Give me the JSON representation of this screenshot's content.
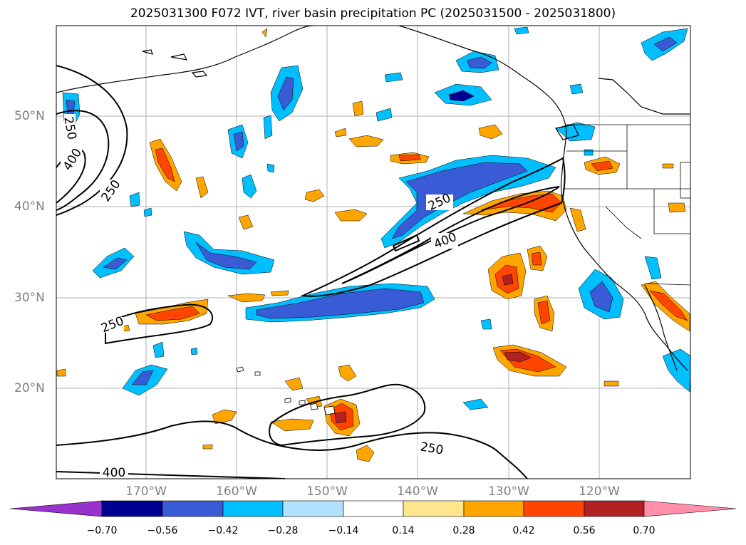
{
  "title": "2025031300 F072 IVT, river basin precipitation PC (2025031500 - 2025031800)",
  "latitude_labels": [
    "50°N",
    "40°N",
    "30°N",
    "20°N"
  ],
  "longitude_labels": [
    "170°W",
    "160°W",
    "150°W",
    "140°W",
    "130°W",
    "120°W"
  ],
  "contour_labels": [
    "250",
    "400",
    "250",
    "250",
    "400",
    "250",
    "250",
    "400"
  ],
  "colorbar": {
    "tick_labels": [
      "−0.70",
      "−0.56",
      "−0.42",
      "−0.28",
      "−0.14",
      "0.14",
      "0.28",
      "0.42",
      "0.56",
      "0.70"
    ],
    "colors": [
      "#9932cc",
      "#000090",
      "#3a5bd6",
      "#00bfff",
      "#b0e2ff",
      "#ffffff",
      "#ffe68c",
      "#ffa500",
      "#ff4500",
      "#b22222",
      "#ff8fab"
    ]
  },
  "colors": {
    "grid": "#b0b0b0",
    "coast": "#000000",
    "ivt_contour": "#000000"
  }
}
